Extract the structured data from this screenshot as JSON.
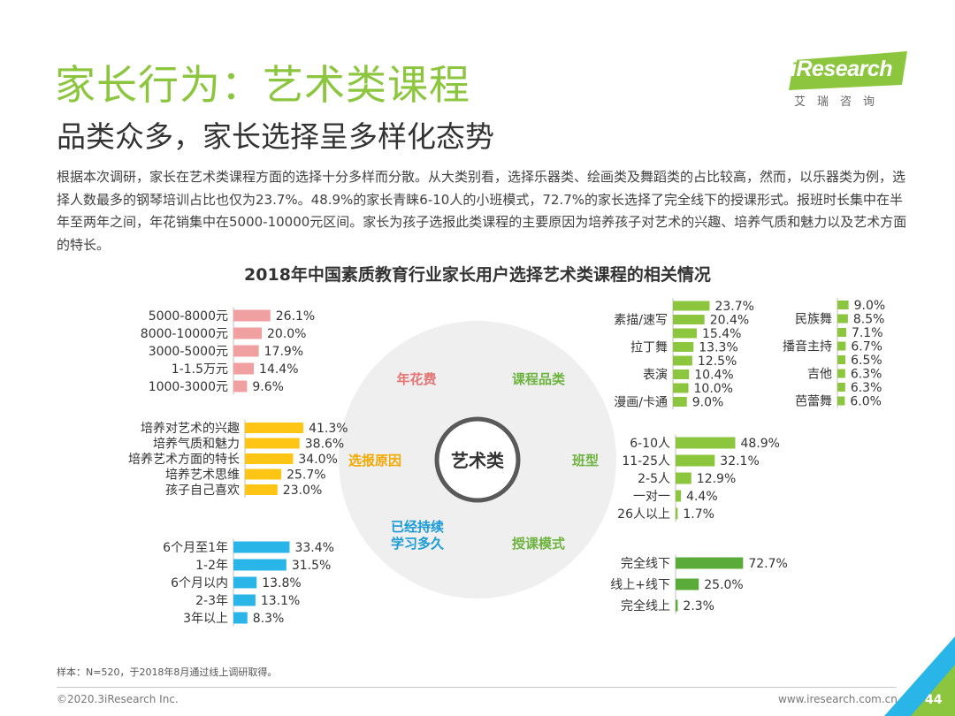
{
  "header": {
    "title": "家长行为：艺术类课程",
    "subtitle": "品类众多，家长选择呈多样化态势",
    "logo_text": "iResearch",
    "logo_sub": "艾瑞咨询"
  },
  "body_text": "根据本次调研，家长在艺术类课程方面的选择十分多样而分散。从大类别看，选择乐器类、绘画类及舞蹈类的占比较高，然而，以乐器类为例，选择人数最多的钢琴培训占比也仅为23.7%。48.9%的家长青睐6-10人的小班模式，72.7%的家长选择了完全线下的授课形式。报班时长集中在半年至两年之间，年花销集中在5000-10000元区间。家长为孩子选报此类课程的主要原因为培养孩子对艺术的兴趣、培养气质和魅力以及艺术方面的特长。",
  "chart_title": "2018年中国素质教育行业家长用户选择艺术类课程的相关情况",
  "center": {
    "label": "艺术类",
    "segments": [
      "年花费",
      "课程品类",
      "选报原因",
      "班型",
      "已经持续\n学习多久",
      "授课模式"
    ]
  },
  "chart_data": [
    {
      "type": "bar",
      "id": "annual-spending",
      "group": "年花费",
      "color": "#f0a0a0",
      "categories": [
        "5000-8000元",
        "8000-10000元",
        "3000-5000元",
        "1-1.5万元",
        "1000-3000元"
      ],
      "values": [
        26.1,
        20.0,
        17.9,
        14.4,
        9.6
      ],
      "value_labels": [
        "26.1%",
        "20.0%",
        "17.9%",
        "14.4%",
        "9.6%"
      ]
    },
    {
      "type": "bar",
      "id": "reasons",
      "group": "选报原因",
      "color": "#ffc515",
      "categories": [
        "培养对艺术的兴趣",
        "培养气质和魅力",
        "培养艺术方面的特长",
        "培养艺术思维",
        "孩子自己喜欢"
      ],
      "values": [
        41.3,
        38.6,
        34.0,
        25.7,
        23.0
      ],
      "value_labels": [
        "41.3%",
        "38.6%",
        "34.0%",
        "25.7%",
        "23.0%"
      ]
    },
    {
      "type": "bar",
      "id": "duration",
      "group": "已经持续学习多久",
      "color": "#2ab5e8",
      "categories": [
        "6个月至1年",
        "1-2年",
        "6个月以内",
        "2-3年",
        "3年以上"
      ],
      "values": [
        33.4,
        31.5,
        13.8,
        13.1,
        8.3
      ],
      "value_labels": [
        "33.4%",
        "31.5%",
        "13.8%",
        "13.1%",
        "8.3%"
      ]
    },
    {
      "type": "bar",
      "id": "course-categories-1",
      "group": "课程品类",
      "color": "#8cc63e",
      "categories": [
        "",
        "素描/速写",
        "",
        "拉丁舞",
        "",
        "表演",
        "",
        "漫画/卡通"
      ],
      "values": [
        23.7,
        20.4,
        15.4,
        13.3,
        12.5,
        10.4,
        10.0,
        9.0
      ],
      "value_labels": [
        "23.7%",
        "20.4%",
        "15.4%",
        "13.3%",
        "12.5%",
        "10.4%",
        "10.0%",
        "9.0%"
      ]
    },
    {
      "type": "bar",
      "id": "course-categories-2",
      "group": "课程品类",
      "color": "#8cc63e",
      "categories": [
        "",
        "民族舞",
        "",
        "播音主持",
        "",
        "吉他",
        "",
        "芭蕾舞"
      ],
      "values": [
        9.0,
        8.5,
        7.1,
        6.7,
        6.5,
        6.3,
        6.3,
        6.0
      ],
      "value_labels": [
        "9.0%",
        "8.5%",
        "7.1%",
        "6.7%",
        "6.5%",
        "6.3%",
        "6.3%",
        "6.0%"
      ]
    },
    {
      "type": "bar",
      "id": "class-size",
      "group": "班型",
      "color": "#8cc63e",
      "categories": [
        "6-10人",
        "11-25人",
        "2-5人",
        "一对一",
        "26人以上"
      ],
      "values": [
        48.9,
        32.1,
        12.9,
        4.4,
        1.7
      ],
      "value_labels": [
        "48.9%",
        "32.1%",
        "12.9%",
        "4.4%",
        "1.7%"
      ]
    },
    {
      "type": "bar",
      "id": "teaching-mode",
      "group": "授课模式",
      "color": "#5bab3a",
      "categories": [
        "完全线下",
        "线上+线下",
        "完全线上"
      ],
      "values": [
        72.7,
        25.0,
        2.3
      ],
      "value_labels": [
        "72.7%",
        "25.0%",
        "2.3%"
      ]
    }
  ],
  "colors": {
    "title_green": "#8cc63e",
    "pink": "#e57373",
    "yellow": "#f5a800",
    "blue": "#1a9bd7",
    "green": "#6db33f"
  },
  "footer": {
    "note": "样本：N=520，于2018年8月通过线上调研取得。",
    "copyright": "©2020.3iResearch Inc.",
    "website": "www.iresearch.com.cn",
    "page": "44"
  }
}
